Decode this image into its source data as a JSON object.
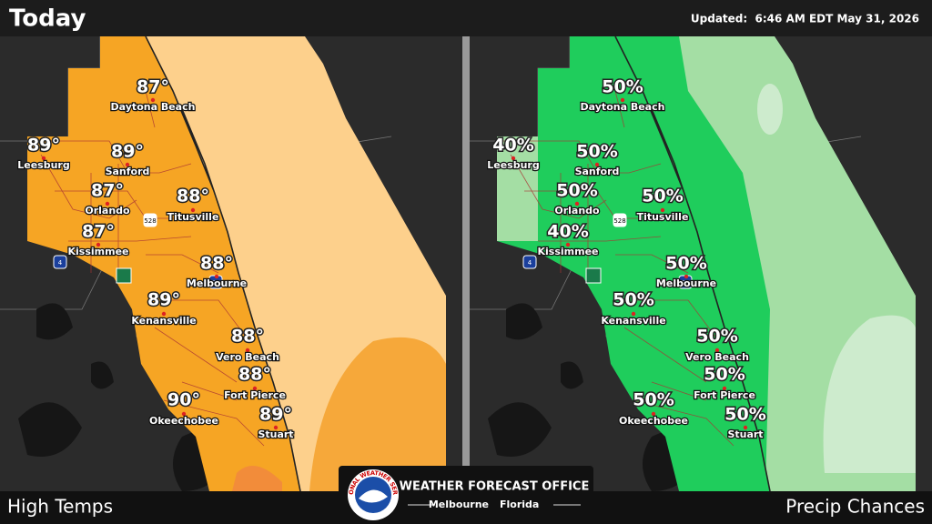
{
  "header": {
    "title": "Today",
    "updated": "Updated:  6:46 AM EDT May 31, 2026"
  },
  "panels": [
    {
      "label": "High Temps"
    },
    {
      "label": "Precip Chances"
    }
  ],
  "cities": [
    {
      "name": "Daytona Beach",
      "high": "87°",
      "precip": "50%"
    },
    {
      "name": "Leesburg",
      "high": "89°",
      "precip": "40%"
    },
    {
      "name": "Sanford",
      "high": "89°",
      "precip": "50%"
    },
    {
      "name": "Orlando",
      "high": "87°",
      "precip": "50%"
    },
    {
      "name": "Titusville",
      "high": "88°",
      "precip": "50%"
    },
    {
      "name": "Kissimmee",
      "high": "87°",
      "precip": "40%"
    },
    {
      "name": "Melbourne",
      "high": "88°",
      "precip": "50%"
    },
    {
      "name": "Kenansville",
      "high": "89°",
      "precip": "50%"
    },
    {
      "name": "Vero Beach",
      "high": "88°",
      "precip": "50%"
    },
    {
      "name": "Fort Pierce",
      "high": "88°",
      "precip": "50%"
    },
    {
      "name": "Okeechobee",
      "high": "90°",
      "precip": "50%"
    },
    {
      "name": "Stuart",
      "high": "89°",
      "precip": "50%"
    }
  ],
  "shields": [
    "528",
    "95",
    "4"
  ],
  "logo": {
    "title": "WEATHER FORECAST OFFICE",
    "city": "Melbourne",
    "state": "Florida",
    "seal": "NATIONAL WEATHER SERVICE"
  }
}
